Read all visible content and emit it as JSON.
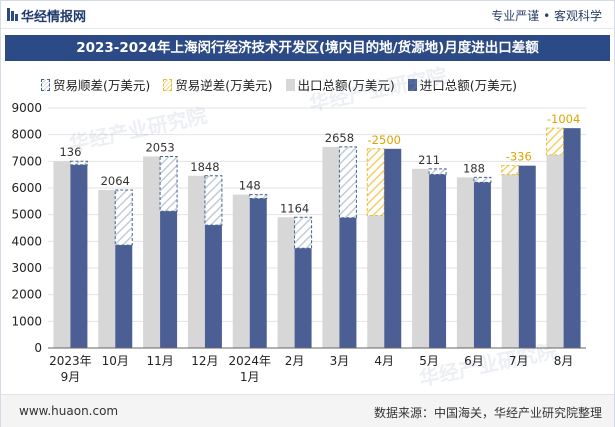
{
  "header": {
    "brand": "华经情报网",
    "slogan": "专业严谨 • 客观科学"
  },
  "chart_data": {
    "type": "bar",
    "title": "2023-2024年上海闵行经济技术开发区(境内目的地/货源地)月度进出口差额",
    "categories": [
      "2023年9月",
      "10月",
      "11月",
      "12月",
      "2024年1月",
      "2月",
      "3月",
      "4月",
      "5月",
      "6月",
      "7月",
      "8月"
    ],
    "ylim": [
      0,
      9000
    ],
    "yticks": [
      0,
      1000,
      2000,
      3000,
      4000,
      5000,
      6000,
      7000,
      8000,
      9000
    ],
    "grid": true,
    "legend_position": "top",
    "series": [
      {
        "name": "贸易顺差(万美元)",
        "kind": "surplus",
        "color": "#3f6690"
      },
      {
        "name": "贸易逆差(万美元)",
        "kind": "deficit",
        "color": "#e9b93c"
      },
      {
        "name": "出口总额(万美元)",
        "kind": "export",
        "color": "#d7d7d7",
        "values": [
          7004,
          5924,
          7183,
          6458,
          5752,
          4903,
          7542,
          4970,
          6718,
          6400,
          6502,
          7240
        ]
      },
      {
        "name": "进口总额(万美元)",
        "kind": "import",
        "color": "#4b5f95",
        "values": [
          6868,
          3860,
          5130,
          4610,
          5604,
          3739,
          4884,
          7470,
          6507,
          6212,
          6838,
          8244
        ]
      }
    ],
    "balance_labels": [
      "136",
      "2064",
      "2053",
      "1848",
      "148",
      "1164",
      "2658",
      "-2500",
      "211",
      "188",
      "-336",
      "-1004"
    ]
  },
  "footer": {
    "url": "www.huaon.com",
    "source": "数据来源：中国海关，华经产业研究院整理"
  },
  "watermark": "华经产业研究院"
}
